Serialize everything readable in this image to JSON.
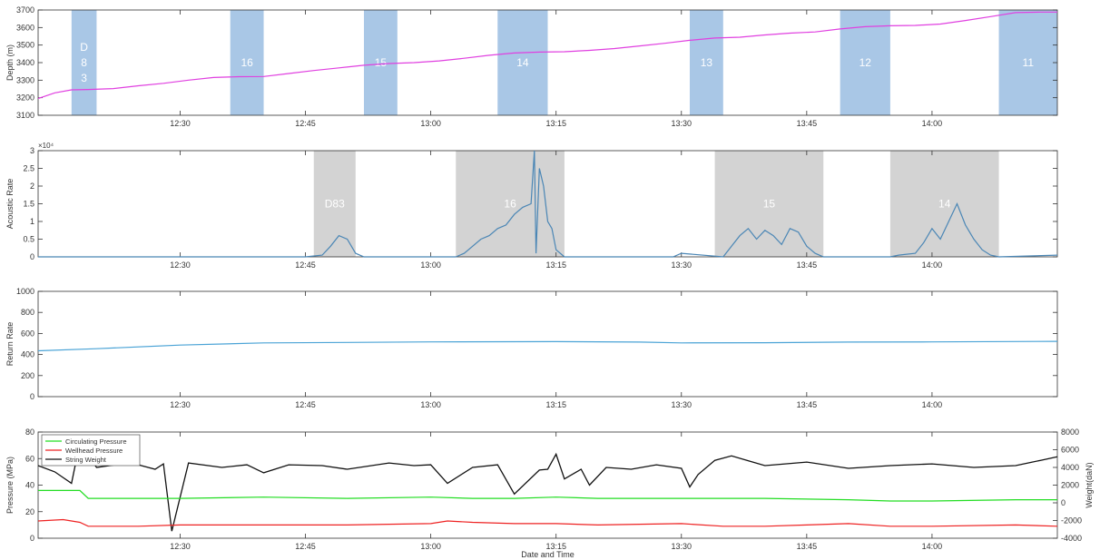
{
  "chart_data": [
    {
      "type": "line",
      "ylabel": "Depth (m)",
      "ylim": [
        3100,
        3700
      ],
      "yticks": [
        3100,
        3200,
        3300,
        3400,
        3500,
        3600,
        3700
      ],
      "x_range": [
        "12:13",
        "14:15"
      ],
      "xticks": [
        "12:30",
        "12:45",
        "13:00",
        "13:15",
        "13:30",
        "13:45",
        "14:00"
      ],
      "grid": false,
      "colors": {
        "line": "#e040e0",
        "band": "#a9c7e6",
        "band_text": "#ffffff"
      },
      "series": [
        {
          "x": [
            "12:13",
            "12:15",
            "12:17",
            "12:19",
            "12:22",
            "12:25",
            "12:28",
            "12:31",
            "12:34",
            "12:37",
            "12:40",
            "12:43",
            "12:46",
            "12:49",
            "12:52",
            "12:55",
            "12:58",
            "13:01",
            "13:04",
            "13:07",
            "13:10",
            "13:13",
            "13:16",
            "13:19",
            "13:22",
            "13:25",
            "13:28",
            "13:31",
            "13:34",
            "13:37",
            "13:40",
            "13:43",
            "13:46",
            "13:49",
            "13:52",
            "13:55",
            "13:58",
            "14:01",
            "14:04",
            "14:07",
            "14:10",
            "14:13",
            "14:15"
          ],
          "values": [
            3195,
            3228,
            3245,
            3247,
            3252,
            3268,
            3282,
            3300,
            3315,
            3320,
            3321,
            3338,
            3355,
            3370,
            3385,
            3395,
            3400,
            3410,
            3425,
            3442,
            3455,
            3460,
            3462,
            3470,
            3480,
            3495,
            3510,
            3527,
            3540,
            3545,
            3558,
            3568,
            3575,
            3592,
            3605,
            3610,
            3612,
            3620,
            3640,
            3662,
            3685,
            3688,
            3688
          ]
        }
      ],
      "bands": [
        {
          "label": "D\n8\n3",
          "start": "12:17",
          "end": "12:20"
        },
        {
          "label": "16",
          "start": "12:36",
          "end": "12:40"
        },
        {
          "label": "15",
          "start": "12:52",
          "end": "12:56"
        },
        {
          "label": "14",
          "start": "13:08",
          "end": "13:14"
        },
        {
          "label": "13",
          "start": "13:31",
          "end": "13:35"
        },
        {
          "label": "12",
          "start": "13:49",
          "end": "13:55"
        },
        {
          "label": "11",
          "start": "14:08",
          "end": "14:15"
        }
      ]
    },
    {
      "type": "line",
      "ylabel": "Acoustic Rate",
      "yunit_multiplier": "×10⁴",
      "ylim": [
        0,
        3
      ],
      "yticks": [
        0,
        0.5,
        1,
        1.5,
        2,
        2.5,
        3
      ],
      "x_range": [
        "12:13",
        "14:15"
      ],
      "xticks": [
        "12:30",
        "12:45",
        "13:00",
        "13:15",
        "13:30",
        "13:45",
        "14:00"
      ],
      "grid": false,
      "colors": {
        "line": "#4a86b5",
        "band": "#d3d3d3",
        "band_text": "#ffffff"
      },
      "series": [
        {
          "x": [
            "12:13",
            "12:45",
            "12:47",
            "12:48",
            "12:49",
            "12:50",
            "12:51",
            "12:52",
            "13:03",
            "13:04",
            "13:05",
            "13:06",
            "13:07",
            "13:08",
            "13:09",
            "13:10",
            "13:11",
            "13:12",
            "13:12.4",
            "13:12.6",
            "13:13",
            "13:13.5",
            "13:14",
            "13:14.5",
            "13:15",
            "13:16",
            "13:29",
            "13:30",
            "13:35",
            "13:36",
            "13:37",
            "13:38",
            "13:39",
            "13:40",
            "13:41",
            "13:42",
            "13:43",
            "13:44",
            "13:45",
            "13:46",
            "13:47",
            "13:55",
            "13:56",
            "13:58",
            "13:59",
            "14:00",
            "14:01",
            "14:02",
            "14:03",
            "14:04",
            "14:05",
            "14:06",
            "14:07",
            "14:08",
            "14:15"
          ],
          "values": [
            0,
            0,
            0.05,
            0.3,
            0.6,
            0.5,
            0.1,
            0,
            0,
            0.1,
            0.3,
            0.5,
            0.6,
            0.8,
            0.9,
            1.2,
            1.4,
            1.5,
            3,
            0.1,
            2.5,
            2,
            1,
            0.8,
            0.2,
            0,
            0,
            0.1,
            0,
            0.3,
            0.6,
            0.8,
            0.5,
            0.75,
            0.6,
            0.35,
            0.8,
            0.7,
            0.3,
            0.1,
            0,
            0,
            0.05,
            0.1,
            0.4,
            0.8,
            0.5,
            1.0,
            1.5,
            0.9,
            0.5,
            0.2,
            0.05,
            0,
            0.05
          ]
        }
      ],
      "bands": [
        {
          "label": "D83",
          "start": "12:46",
          "end": "12:51"
        },
        {
          "label": "16",
          "start": "13:03",
          "end": "13:16"
        },
        {
          "label": "15",
          "start": "13:34",
          "end": "13:47"
        },
        {
          "label": "14",
          "start": "13:55",
          "end": "14:08"
        }
      ]
    },
    {
      "type": "line",
      "ylabel": "Return Rate",
      "ylim": [
        0,
        1000
      ],
      "yticks": [
        0,
        200,
        400,
        600,
        800,
        1000
      ],
      "x_range": [
        "12:13",
        "14:15"
      ],
      "xticks": [
        "12:30",
        "12:45",
        "13:00",
        "13:15",
        "13:30",
        "13:45",
        "14:00"
      ],
      "grid": false,
      "colors": {
        "line": "#4aa3d6"
      },
      "series": [
        {
          "x": [
            "12:13",
            "12:20",
            "12:30",
            "12:40",
            "12:50",
            "13:00",
            "13:15",
            "13:25",
            "13:30",
            "13:40",
            "13:50",
            "14:00",
            "14:15"
          ],
          "values": [
            435,
            455,
            490,
            510,
            515,
            520,
            522,
            518,
            510,
            512,
            518,
            520,
            525
          ]
        }
      ]
    },
    {
      "type": "line",
      "xlabel": "Date and Time",
      "ylabel": "Pressure (MPa)",
      "ylabel_right": "Weight(daN)",
      "ylim": [
        0,
        80
      ],
      "yticks": [
        0,
        20,
        40,
        60,
        80
      ],
      "ylim_right": [
        -4000,
        8000
      ],
      "yticks_right": [
        -4000,
        -2000,
        0,
        2000,
        4000,
        6000,
        8000
      ],
      "x_range": [
        "12:13",
        "14:15"
      ],
      "xticks": [
        "12:30",
        "12:45",
        "13:00",
        "13:15",
        "13:30",
        "13:45",
        "14:00"
      ],
      "grid": false,
      "legend": "top-left",
      "series": [
        {
          "name": "Circulating Pressure",
          "axis": "left",
          "color": "#22dd22",
          "x": [
            "12:13",
            "12:18",
            "12:19",
            "12:25",
            "12:30",
            "12:40",
            "12:50",
            "13:00",
            "13:05",
            "13:10",
            "13:15",
            "13:20",
            "13:30",
            "13:40",
            "13:50",
            "13:55",
            "14:00",
            "14:10",
            "14:15"
          ],
          "values": [
            36,
            36,
            30,
            30,
            30,
            31,
            30,
            31,
            30,
            30,
            31,
            30,
            30,
            30,
            29,
            28,
            28,
            29,
            29
          ]
        },
        {
          "name": "Wellhead Pressure",
          "axis": "left",
          "color": "#ee2222",
          "x": [
            "12:13",
            "12:16",
            "12:18",
            "12:19",
            "12:25",
            "12:30",
            "12:40",
            "12:50",
            "13:00",
            "13:02",
            "13:05",
            "13:10",
            "13:15",
            "13:20",
            "13:30",
            "13:35",
            "13:40",
            "13:45",
            "13:50",
            "13:55",
            "14:00",
            "14:10",
            "14:15"
          ],
          "values": [
            13,
            14,
            12,
            9,
            9,
            10,
            10,
            10,
            11,
            13,
            12,
            11,
            11,
            10,
            11,
            9,
            9,
            10,
            11,
            9,
            9,
            10,
            9
          ]
        },
        {
          "name": "String Weight",
          "axis": "right",
          "color": "#111111",
          "x": [
            "12:13",
            "12:15",
            "12:17",
            "12:18",
            "12:20",
            "12:23",
            "12:25",
            "12:27",
            "12:28",
            "12:29",
            "12:31",
            "12:35",
            "12:38",
            "12:40",
            "12:43",
            "12:47",
            "12:50",
            "12:55",
            "12:58",
            "13:00",
            "13:02",
            "13:05",
            "13:08",
            "13:10",
            "13:13",
            "13:14",
            "13:15",
            "13:16",
            "13:18",
            "13:19",
            "13:21",
            "13:24",
            "13:27",
            "13:30",
            "13:31",
            "13:32",
            "13:34",
            "13:36",
            "13:40",
            "13:45",
            "13:50",
            "13:55",
            "14:00",
            "14:05",
            "14:10",
            "14:13",
            "14:15"
          ],
          "values": [
            4200,
            3500,
            2200,
            6800,
            4000,
            4400,
            4300,
            3800,
            4400,
            -3200,
            4500,
            4000,
            4300,
            3400,
            4300,
            4200,
            3800,
            4500,
            4200,
            4300,
            2200,
            4000,
            4300,
            1000,
            3700,
            3800,
            5500,
            2700,
            3800,
            2000,
            4000,
            3800,
            4300,
            3900,
            1800,
            3200,
            4800,
            5300,
            4200,
            4600,
            3900,
            4200,
            4400,
            4000,
            4200,
            4800,
            5200
          ]
        }
      ]
    }
  ]
}
